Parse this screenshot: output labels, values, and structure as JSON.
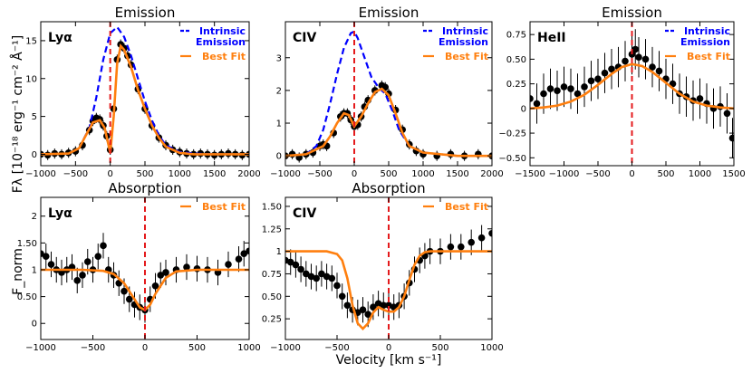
{
  "figure": {
    "ylabel_top": "Fλ [10⁻¹⁸ erg⁻¹ cm⁻² Å⁻¹]",
    "ylabel_bottom": "F_norm",
    "xlabel": "Velocity [km s⁻¹]"
  },
  "colors": {
    "fit": "#ff7f0e",
    "intrinsic": "#0000ff",
    "zero_line": "#e41a1c",
    "data": "#000000"
  },
  "chart_data": [
    {
      "type": "line",
      "title": "Emission",
      "label": "Lyα",
      "xlim": [
        -1000,
        2000
      ],
      "ylim": [
        -1.5,
        17.5
      ],
      "xticks": [
        -1000,
        -500,
        0,
        500,
        1000,
        1500,
        2000
      ],
      "yticks": [
        0,
        5,
        10,
        15
      ],
      "legend": [
        "Intrinsic Emission",
        "Best Fit"
      ],
      "legend_position": "top-right",
      "series": [
        {
          "name": "Intrinsic Emission",
          "style": "dashed",
          "x": [
            -1000,
            -600,
            -450,
            -300,
            -200,
            -100,
            0,
            100,
            200,
            300,
            400,
            500,
            600,
            700,
            800,
            1000,
            1200,
            1500,
            2000
          ],
          "y": [
            0,
            0.1,
            0.8,
            3.5,
            7.5,
            12.5,
            16,
            16.8,
            15.5,
            13,
            10,
            7,
            4.5,
            2.5,
            1.2,
            0.3,
            0.1,
            0,
            0
          ]
        },
        {
          "name": "Best Fit",
          "style": "solid",
          "x": [
            -1000,
            -600,
            -450,
            -350,
            -250,
            -150,
            -80,
            0,
            50,
            100,
            150,
            200,
            300,
            400,
            500,
            600,
            700,
            800,
            1000,
            1200,
            1500,
            2000
          ],
          "y": [
            0,
            0.1,
            0.8,
            2.5,
            4.2,
            4.5,
            3.5,
            0.2,
            5,
            12,
            14.3,
            13.8,
            11.5,
            8.5,
            6,
            3.8,
            2.2,
            1,
            0.2,
            0,
            0,
            0
          ]
        },
        {
          "name": "Data",
          "style": "points",
          "x": [
            -1000,
            -900,
            -800,
            -700,
            -600,
            -500,
            -400,
            -300,
            -250,
            -200,
            -150,
            -100,
            -50,
            0,
            50,
            100,
            150,
            200,
            250,
            300,
            400,
            500,
            600,
            700,
            800,
            900,
            1000,
            1100,
            1200,
            1300,
            1400,
            1500,
            1600,
            1700,
            1800,
            1900,
            2000
          ],
          "y": [
            0,
            -0.1,
            0.1,
            0,
            0.2,
            0.4,
            1.2,
            3.2,
            4.4,
            4.8,
            4.6,
            3.8,
            2.4,
            0.6,
            6,
            12.5,
            14.5,
            14,
            13,
            11.8,
            8.6,
            6,
            3.8,
            2.2,
            1.2,
            0.6,
            0.3,
            0.1,
            0,
            0.1,
            0,
            -0.1,
            0,
            0.1,
            0,
            -0.1,
            0
          ]
        }
      ]
    },
    {
      "type": "line",
      "title": "Emission",
      "label": "CIV",
      "xlim": [
        -1000,
        2000
      ],
      "ylim": [
        -0.3,
        4.1
      ],
      "xticks": [
        -1000,
        -500,
        0,
        500,
        1000,
        1500,
        2000
      ],
      "yticks": [
        0,
        1,
        2,
        3
      ],
      "legend": [
        "Intrinsic Emission",
        "Best Fit"
      ],
      "legend_position": "top-right",
      "series": [
        {
          "name": "Intrinsic Emission",
          "style": "dashed",
          "x": [
            -1000,
            -700,
            -550,
            -450,
            -350,
            -250,
            -150,
            -50,
            0,
            50,
            150,
            250,
            350,
            450,
            550,
            650,
            800,
            1000,
            1500,
            2000
          ],
          "y": [
            0,
            0.05,
            0.3,
            0.8,
            1.6,
            2.5,
            3.3,
            3.75,
            3.8,
            3.6,
            3.0,
            2.4,
            2.1,
            1.9,
            1.4,
            0.8,
            0.3,
            0.1,
            0,
            0
          ]
        },
        {
          "name": "Best Fit",
          "style": "solid",
          "x": [
            -1000,
            -700,
            -550,
            -450,
            -350,
            -250,
            -150,
            -80,
            0,
            100,
            200,
            300,
            400,
            500,
            600,
            700,
            800,
            1000,
            1500,
            2000
          ],
          "y": [
            0,
            0.05,
            0.2,
            0.3,
            0.6,
            1.0,
            1.3,
            1.25,
            0.9,
            1.2,
            1.6,
            1.95,
            2.05,
            1.85,
            1.3,
            0.7,
            0.3,
            0.1,
            0,
            0
          ]
        },
        {
          "name": "Data",
          "style": "points",
          "x": [
            -1000,
            -900,
            -800,
            -700,
            -600,
            -500,
            -450,
            -400,
            -300,
            -200,
            -150,
            -100,
            -50,
            0,
            50,
            100,
            150,
            200,
            300,
            400,
            450,
            500,
            600,
            700,
            800,
            900,
            1000,
            1200,
            1400,
            1600,
            1800,
            2000
          ],
          "y": [
            0,
            0.05,
            -0.05,
            0.05,
            0.1,
            0.3,
            0.35,
            0.3,
            0.7,
            1.2,
            1.3,
            1.3,
            1.1,
            0.9,
            0.95,
            1.2,
            1.5,
            1.7,
            2.0,
            2.15,
            2.1,
            1.9,
            1.4,
            0.8,
            0.35,
            0.15,
            0.05,
            0,
            0.05,
            0,
            0.05,
            0
          ]
        }
      ]
    },
    {
      "type": "line",
      "title": "Emission",
      "label": "HeII",
      "xlim": [
        -1500,
        1500
      ],
      "ylim": [
        -0.58,
        0.88
      ],
      "xticks": [
        -1500,
        -1000,
        -500,
        0,
        500,
        1000,
        1500
      ],
      "yticks": [
        -0.5,
        -0.25,
        0.0,
        0.25,
        0.5,
        0.75
      ],
      "legend": [
        "Intrinsic Emission",
        "Best Fit"
      ],
      "legend_position": "top-right",
      "series": [
        {
          "name": "Best Fit",
          "style": "solid",
          "x": [
            -1500,
            -1300,
            -1100,
            -900,
            -700,
            -500,
            -300,
            -150,
            0,
            150,
            300,
            500,
            700,
            900,
            1100,
            1300,
            1500
          ],
          "y": [
            0,
            0.01,
            0.03,
            0.07,
            0.14,
            0.24,
            0.35,
            0.42,
            0.45,
            0.43,
            0.37,
            0.26,
            0.15,
            0.07,
            0.03,
            0.01,
            0
          ]
        },
        {
          "name": "Data",
          "style": "points",
          "x": [
            -1500,
            -1400,
            -1300,
            -1200,
            -1100,
            -1000,
            -900,
            -800,
            -700,
            -600,
            -500,
            -400,
            -300,
            -200,
            -100,
            0,
            50,
            100,
            200,
            300,
            400,
            500,
            600,
            700,
            800,
            900,
            1000,
            1100,
            1200,
            1300,
            1400,
            1480
          ],
          "y": [
            0.1,
            0.05,
            0.15,
            0.2,
            0.18,
            0.22,
            0.2,
            0.15,
            0.22,
            0.28,
            0.3,
            0.36,
            0.4,
            0.42,
            0.48,
            0.55,
            0.6,
            0.52,
            0.5,
            0.42,
            0.38,
            0.3,
            0.25,
            0.15,
            0.12,
            0.08,
            0.1,
            0.05,
            0.0,
            0.02,
            -0.05,
            -0.3
          ]
        }
      ]
    },
    {
      "type": "line",
      "title": "Absorption",
      "label": "Lyα",
      "xlim": [
        -1000,
        1000
      ],
      "ylim": [
        -0.3,
        2.35
      ],
      "xticks": [
        -1000,
        -500,
        0,
        500,
        1000
      ],
      "yticks": [
        0.0,
        0.5,
        1.0,
        1.5,
        2.0
      ],
      "legend": [
        "Best Fit"
      ],
      "legend_position": "top-right",
      "series": [
        {
          "name": "Best Fit",
          "style": "solid",
          "x": [
            -1000,
            -600,
            -400,
            -300,
            -200,
            -100,
            -50,
            0,
            50,
            100,
            200,
            300,
            500,
            1000
          ],
          "y": [
            1.0,
            1.0,
            0.98,
            0.92,
            0.75,
            0.45,
            0.3,
            0.25,
            0.35,
            0.55,
            0.85,
            0.97,
            1.0,
            1.0
          ]
        },
        {
          "name": "Data",
          "style": "points",
          "x": [
            -1000,
            -950,
            -900,
            -850,
            -800,
            -750,
            -700,
            -650,
            -600,
            -550,
            -500,
            -450,
            -400,
            -350,
            -300,
            -250,
            -200,
            -150,
            -100,
            -50,
            0,
            50,
            100,
            150,
            200,
            300,
            400,
            500,
            600,
            700,
            800,
            900,
            950,
            1000
          ],
          "y": [
            1.3,
            1.25,
            1.1,
            1.0,
            0.95,
            1.0,
            1.05,
            0.8,
            0.9,
            1.15,
            1.0,
            1.25,
            1.45,
            1.0,
            0.9,
            0.75,
            0.6,
            0.45,
            0.35,
            0.3,
            0.25,
            0.45,
            0.7,
            0.9,
            0.95,
            1.0,
            1.05,
            1.02,
            1.0,
            0.95,
            1.1,
            1.2,
            1.3,
            1.35
          ]
        }
      ]
    },
    {
      "type": "line",
      "title": "Absorption",
      "label": "CIV",
      "xlim": [
        -1000,
        1000
      ],
      "ylim": [
        0.02,
        1.6
      ],
      "xticks": [
        -1000,
        -500,
        0,
        500,
        1000
      ],
      "yticks": [
        0.25,
        0.5,
        0.75,
        1.0,
        1.25,
        1.5
      ],
      "legend": [
        "Best Fit"
      ],
      "legend_position": "top-right",
      "series": [
        {
          "name": "Best Fit",
          "style": "solid",
          "x": [
            -1000,
            -600,
            -500,
            -450,
            -400,
            -350,
            -300,
            -250,
            -200,
            -150,
            -100,
            -50,
            0,
            50,
            100,
            150,
            200,
            250,
            300,
            350,
            400,
            500,
            1000
          ],
          "y": [
            1.0,
            1.0,
            0.97,
            0.9,
            0.7,
            0.4,
            0.2,
            0.14,
            0.2,
            0.32,
            0.38,
            0.35,
            0.33,
            0.33,
            0.38,
            0.5,
            0.68,
            0.85,
            0.95,
            0.99,
            1.0,
            1.0,
            1.0
          ]
        },
        {
          "name": "Data",
          "style": "points",
          "x": [
            -1000,
            -950,
            -900,
            -850,
            -800,
            -750,
            -700,
            -650,
            -600,
            -550,
            -500,
            -450,
            -400,
            -350,
            -300,
            -250,
            -200,
            -150,
            -100,
            -50,
            0,
            50,
            100,
            150,
            200,
            250,
            300,
            350,
            400,
            500,
            600,
            700,
            800,
            900,
            1000
          ],
          "y": [
            0.9,
            0.88,
            0.85,
            0.8,
            0.75,
            0.72,
            0.7,
            0.75,
            0.72,
            0.7,
            0.62,
            0.5,
            0.4,
            0.35,
            0.32,
            0.35,
            0.3,
            0.38,
            0.42,
            0.4,
            0.4,
            0.38,
            0.4,
            0.5,
            0.65,
            0.8,
            0.9,
            0.95,
            1.0,
            1.0,
            1.05,
            1.05,
            1.1,
            1.15,
            1.2
          ]
        }
      ]
    }
  ]
}
